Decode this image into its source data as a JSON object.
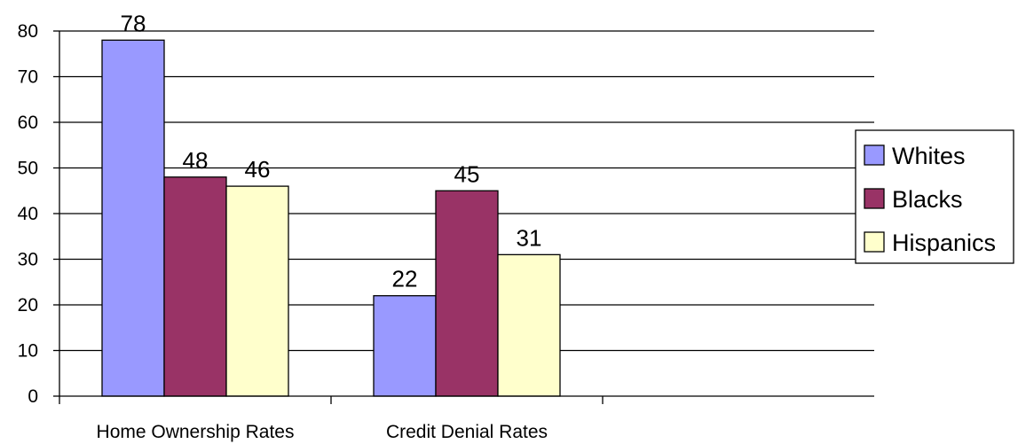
{
  "chart_data": {
    "type": "bar",
    "categories": [
      "Home Ownership Rates",
      "Credit Denial Rates",
      ""
    ],
    "series": [
      {
        "name": "Whites",
        "values": [
          78,
          22,
          null
        ],
        "color": "#9999ff"
      },
      {
        "name": "Blacks",
        "values": [
          48,
          45,
          null
        ],
        "color": "#993366"
      },
      {
        "name": "Hispanics",
        "values": [
          46,
          31,
          null
        ],
        "color": "#ffffcc"
      }
    ],
    "title": "",
    "xlabel": "",
    "ylabel": "",
    "ylim": [
      0,
      80
    ],
    "yticks": [
      0,
      10,
      20,
      30,
      40,
      50,
      60,
      70,
      80
    ],
    "grid": true,
    "legend_position": "right",
    "data_labels": true
  }
}
